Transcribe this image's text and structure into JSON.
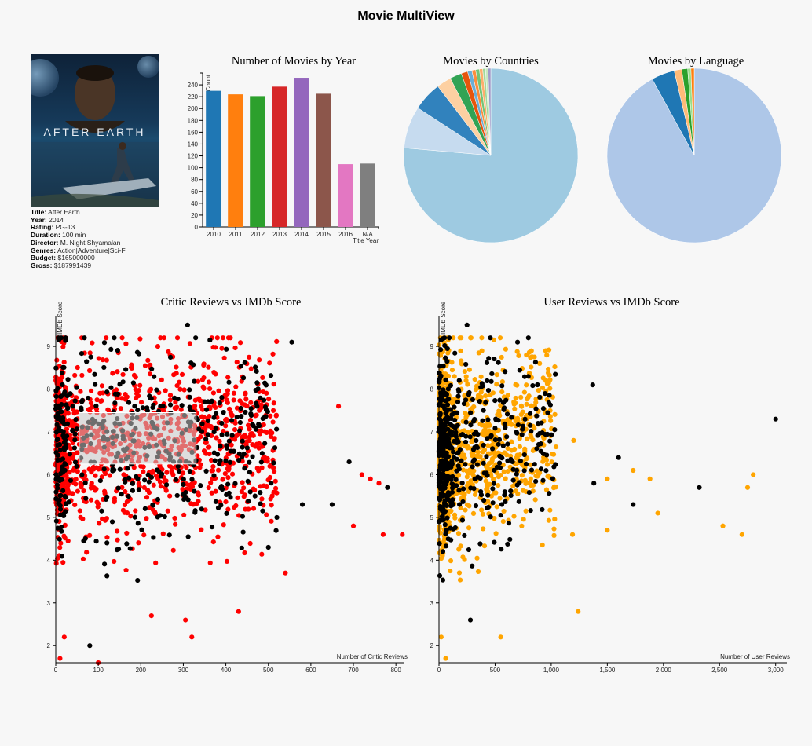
{
  "app": {
    "title": "Movie MultiView"
  },
  "movie": {
    "poster_title_text": "AFTER EARTH",
    "details": [
      {
        "label": "Title:",
        "value": "After Earth"
      },
      {
        "label": "Year:",
        "value": "2014"
      },
      {
        "label": "Rating:",
        "value": "PG-13"
      },
      {
        "label": "Duration:",
        "value": "100 min"
      },
      {
        "label": "Director:",
        "value": "M. Night Shyamalan"
      },
      {
        "label": "Genres:",
        "value": "Action|Adventure|Sci-Fi"
      },
      {
        "label": "Budget:",
        "value": "$165000000"
      },
      {
        "label": "Gross:",
        "value": "$187991439"
      }
    ]
  },
  "colors": {
    "background": "#f7f7f7",
    "critic_points": "#ff0000",
    "user_points": "#ffa500",
    "highlight_points": "#000000"
  },
  "chart_data": [
    {
      "id": "year",
      "type": "bar",
      "title": "Number of Movies by Year",
      "xlabel": "Title Year",
      "ylabel": "Count",
      "categories": [
        "2010",
        "2011",
        "2012",
        "2013",
        "2014",
        "2015",
        "2016",
        "N/A"
      ],
      "values": [
        230,
        224,
        221,
        237,
        252,
        225,
        106,
        107
      ],
      "colors": [
        "#1f77b4",
        "#ff7f0e",
        "#2ca02c",
        "#d62728",
        "#9467bd",
        "#8c564b",
        "#e377c2",
        "#7f7f7f"
      ],
      "ylim": [
        0,
        260
      ],
      "yticks": [
        0,
        20,
        40,
        60,
        80,
        100,
        120,
        140,
        160,
        180,
        200,
        220,
        240
      ]
    },
    {
      "id": "countries",
      "type": "pie",
      "title": "Movies by Countries",
      "values": [
        76.4,
        7.8,
        5.4,
        2.7,
        2.2,
        1.2,
        0.8,
        0.7,
        0.7,
        0.6,
        0.5,
        0.5,
        0.5
      ],
      "colors": [
        "#9ecae1",
        "#c6dbef",
        "#3182bd",
        "#fdd0a2",
        "#31a354",
        "#e6550d",
        "#6baed6",
        "#fd8d3c",
        "#74c476",
        "#fdae6b",
        "#a1d99b",
        "#c7e9c0",
        "#9e9ac8"
      ]
    },
    {
      "id": "language",
      "type": "pie",
      "title": "Movies by Language",
      "values": [
        92.0,
        4.3,
        1.4,
        1.1,
        0.6,
        0.6
      ],
      "colors": [
        "#aec7e8",
        "#1f77b4",
        "#ffbb78",
        "#2ca02c",
        "#98df8a",
        "#ff7f0e"
      ]
    },
    {
      "id": "critic",
      "type": "scatter",
      "title": "Critic Reviews vs IMDb Score",
      "xlabel": "Number of Critic Reviews",
      "ylabel": "IMDb Score",
      "xlim": [
        0,
        820
      ],
      "ylim": [
        1.6,
        9.7
      ],
      "xticks": [
        0,
        100,
        200,
        300,
        400,
        500,
        600,
        700,
        800
      ],
      "yticks": [
        2,
        3,
        4,
        5,
        6,
        7,
        8,
        9
      ],
      "n_points": 1600,
      "highlight_fraction": 0.3,
      "brush": {
        "x0": 55,
        "x1": 330,
        "y0": 6.25,
        "y1": 7.45
      },
      "outliers": [
        {
          "x": 310,
          "y": 9.5,
          "hl": true
        },
        {
          "x": 555,
          "y": 9.1,
          "hl": true
        },
        {
          "x": 240,
          "y": 9.0,
          "hl": false
        },
        {
          "x": 665,
          "y": 7.6,
          "hl": false
        },
        {
          "x": 690,
          "y": 6.3,
          "hl": true
        },
        {
          "x": 720,
          "y": 6.0,
          "hl": false
        },
        {
          "x": 740,
          "y": 5.9,
          "hl": false
        },
        {
          "x": 760,
          "y": 5.8,
          "hl": false
        },
        {
          "x": 780,
          "y": 5.7,
          "hl": true
        },
        {
          "x": 815,
          "y": 4.6,
          "hl": false
        },
        {
          "x": 770,
          "y": 4.6,
          "hl": false
        },
        {
          "x": 700,
          "y": 4.8,
          "hl": false
        },
        {
          "x": 320,
          "y": 2.2,
          "hl": false
        },
        {
          "x": 305,
          "y": 2.6,
          "hl": false
        },
        {
          "x": 20,
          "y": 2.2,
          "hl": false
        },
        {
          "x": 10,
          "y": 1.7,
          "hl": false
        },
        {
          "x": 100,
          "y": 1.6,
          "hl": false
        },
        {
          "x": 80,
          "y": 2.0,
          "hl": true
        },
        {
          "x": 430,
          "y": 2.8,
          "hl": false
        },
        {
          "x": 225,
          "y": 2.7,
          "hl": false
        },
        {
          "x": 540,
          "y": 3.7,
          "hl": false
        },
        {
          "x": 580,
          "y": 5.3,
          "hl": true
        },
        {
          "x": 650,
          "y": 5.3,
          "hl": true
        },
        {
          "x": 500,
          "y": 4.3,
          "hl": true
        }
      ]
    },
    {
      "id": "user",
      "type": "scatter",
      "title": "User Reviews vs IMDb Score",
      "xlabel": "Number of User Reviews",
      "ylabel": "IMDb Score",
      "xlim": [
        0,
        3100
      ],
      "ylim": [
        1.6,
        9.7
      ],
      "xticks": [
        0,
        500,
        1000,
        1500,
        2000,
        2500,
        3000
      ],
      "xtick_labels": [
        "0",
        "500",
        "1,000",
        "1,500",
        "2,000",
        "2,500",
        "3,000"
      ],
      "yticks": [
        2,
        3,
        4,
        5,
        6,
        7,
        8,
        9
      ],
      "n_points": 1600,
      "highlight_fraction": 0.3,
      "outliers": [
        {
          "x": 3000,
          "y": 7.3,
          "hl": true
        },
        {
          "x": 2800,
          "y": 6.0,
          "hl": false
        },
        {
          "x": 2750,
          "y": 5.7,
          "hl": false
        },
        {
          "x": 2700,
          "y": 4.6,
          "hl": false
        },
        {
          "x": 2530,
          "y": 4.8,
          "hl": false
        },
        {
          "x": 2320,
          "y": 5.7,
          "hl": true
        },
        {
          "x": 1950,
          "y": 5.1,
          "hl": false
        },
        {
          "x": 1880,
          "y": 5.9,
          "hl": false
        },
        {
          "x": 1730,
          "y": 5.3,
          "hl": true
        },
        {
          "x": 1730,
          "y": 6.1,
          "hl": false
        },
        {
          "x": 1600,
          "y": 6.4,
          "hl": true
        },
        {
          "x": 1500,
          "y": 5.9,
          "hl": false
        },
        {
          "x": 1500,
          "y": 4.7,
          "hl": false
        },
        {
          "x": 1370,
          "y": 8.1,
          "hl": true
        },
        {
          "x": 1380,
          "y": 5.8,
          "hl": true
        },
        {
          "x": 1240,
          "y": 2.8,
          "hl": false
        },
        {
          "x": 550,
          "y": 2.2,
          "hl": false
        },
        {
          "x": 250,
          "y": 9.5,
          "hl": true
        },
        {
          "x": 700,
          "y": 9.1,
          "hl": true
        },
        {
          "x": 20,
          "y": 2.2,
          "hl": false
        },
        {
          "x": 280,
          "y": 2.6,
          "hl": true
        },
        {
          "x": 60,
          "y": 1.7,
          "hl": false
        },
        {
          "x": 1200,
          "y": 6.8,
          "hl": false
        },
        {
          "x": 1190,
          "y": 4.6,
          "hl": false
        }
      ]
    }
  ]
}
